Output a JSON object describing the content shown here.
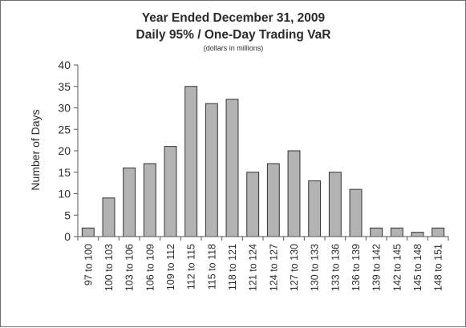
{
  "chart_data": {
    "type": "bar",
    "title": "Year Ended December 31, 2009",
    "title_line2": "Daily 95% / One-Day Trading VaR",
    "subtitle": "(dollars in millions)",
    "xlabel": "",
    "ylabel": "Number of Days",
    "ylim": [
      0,
      40
    ],
    "yticks": [
      0,
      5,
      10,
      15,
      20,
      25,
      30,
      35,
      40
    ],
    "grid": false,
    "bar_color": "#b3b3b3",
    "categories": [
      "97 to 100",
      "100 to 103",
      "103 to 106",
      "106 to 109",
      "109 to 112",
      "112 to 115",
      "115 to 118",
      "118 to 121",
      "121 to 124",
      "124 to 127",
      "127 to 130",
      "130 to 133",
      "133 to 136",
      "136 to 139",
      "139 to 142",
      "142 to 145",
      "145 to 148",
      "148 to 151"
    ],
    "values": [
      2,
      9,
      16,
      17,
      21,
      35,
      31,
      32,
      15,
      17,
      20,
      13,
      15,
      11,
      2,
      2,
      1,
      2
    ]
  }
}
